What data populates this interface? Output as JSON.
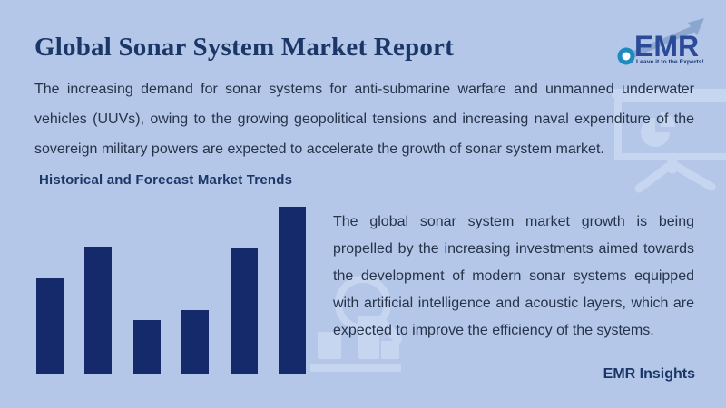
{
  "colors": {
    "bg": "#b4c7e8",
    "navy": "#1b3767",
    "text": "#263349",
    "bar": "#152a6b",
    "watermark": "#c9d7f1",
    "logo-blue": "#2b4a97",
    "logo-arrow": "#8ba6cf",
    "logo-ring": "#1f8ac0",
    "logo-dark": "#1d3a75"
  },
  "header": {
    "title": "Global Sonar System Market Report"
  },
  "logo": {
    "text": "EMR",
    "tagline": "Leave it to the Experts!"
  },
  "intro_paragraph": "The increasing demand for sonar systems for anti-submarine warfare and unmanned underwater vehicles (UUVs), owing to the growing geopolitical tensions and increasing naval expenditure of the sovereign military powers are expected to accelerate the growth of sonar system market.",
  "section": {
    "heading": "Historical and Forecast Market Trends",
    "body_paragraph": "The global sonar system market growth is being propelled by the increasing investments aimed towards the development of modern sonar systems equipped with artificial intelligence and acoustic layers, which are expected to improve the efficiency of the systems."
  },
  "footer": {
    "label": "EMR Insights"
  },
  "chart_data": {
    "type": "bar",
    "categories": [
      "",
      "",
      "",
      "",
      "",
      ""
    ],
    "values": [
      57,
      76,
      32,
      38,
      75,
      100
    ],
    "title": "",
    "xlabel": "",
    "ylabel": "",
    "ylim": [
      0,
      100
    ],
    "legend": "none",
    "grid": false,
    "axes_visible": false,
    "bar_color": "#152a6b"
  }
}
